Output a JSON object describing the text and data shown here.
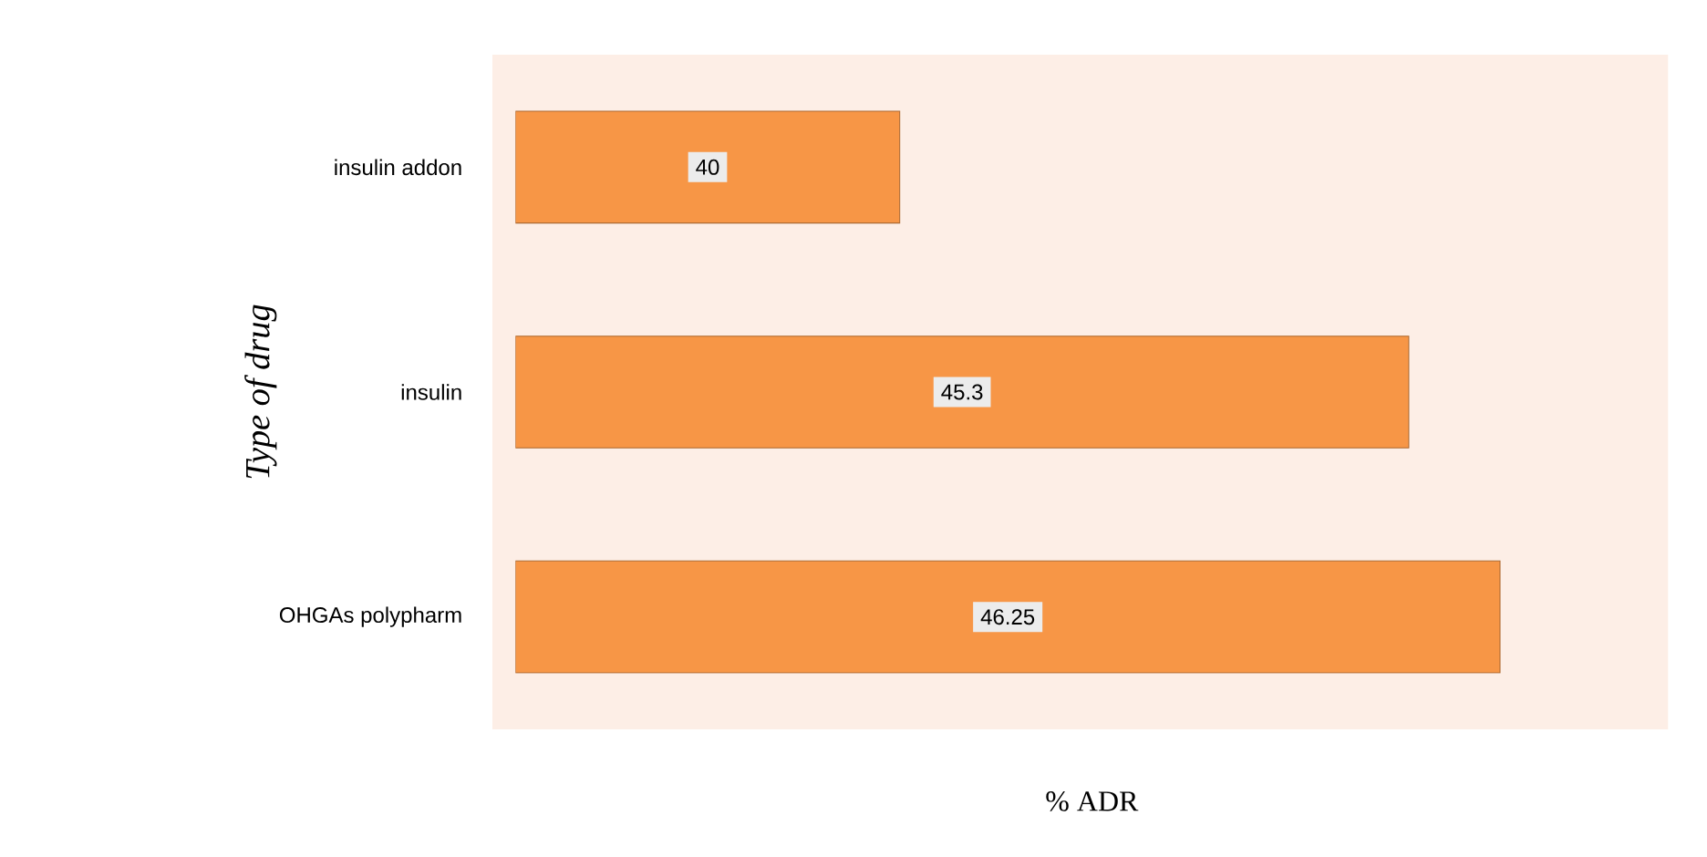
{
  "chart_data": {
    "type": "bar",
    "orientation": "horizontal",
    "categories": [
      "insulin addon",
      "insulin",
      "OHGAs polypharm"
    ],
    "values": [
      40,
      45.3,
      46.25
    ],
    "color": "#f79646",
    "xlim": [
      36,
      48
    ],
    "tick_labels": "y",
    "data_labels": true,
    "xlabel": "% ADR",
    "ylabel": "Type of drug"
  }
}
